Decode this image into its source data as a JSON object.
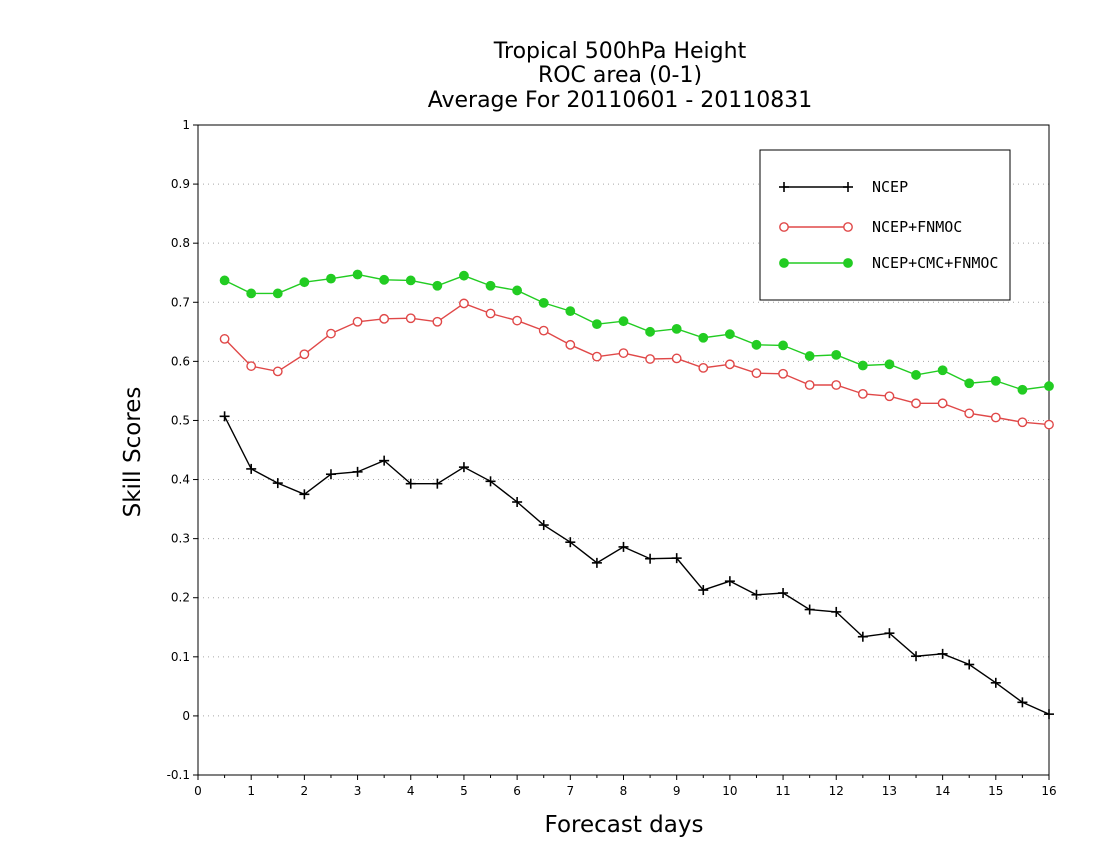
{
  "chart_data": {
    "type": "line",
    "title_lines": [
      "Tropical 500hPa Height",
      "ROC area (0-1)",
      "Average For 20110601 - 20110831"
    ],
    "xlabel": "Forecast days",
    "ylabel": "Skill Scores",
    "xlim": [
      0,
      16
    ],
    "ylim": [
      -0.1,
      1
    ],
    "x_ticks": [
      0,
      1,
      2,
      3,
      4,
      5,
      6,
      7,
      8,
      9,
      10,
      11,
      12,
      13,
      14,
      15,
      16
    ],
    "x_tick_labels": [
      "0",
      "1",
      "2",
      "3",
      "4",
      "5",
      "6",
      "7",
      "8",
      "9",
      "10",
      "11",
      "12",
      "13",
      "14",
      "15",
      "16"
    ],
    "y_ticks": [
      -0.1,
      0,
      0.1,
      0.2,
      0.3,
      0.4,
      0.5,
      0.6,
      0.7,
      0.8,
      0.9,
      1
    ],
    "y_tick_labels": [
      "-0.1",
      "0",
      "0.1",
      "0.2",
      "0.3",
      "0.4",
      "0.5",
      "0.6",
      "0.7",
      "0.8",
      "0.9",
      "1"
    ],
    "grid": "horizontal-dotted",
    "legend_position": "top-right",
    "x": [
      0.5,
      1,
      1.5,
      2,
      2.5,
      3,
      3.5,
      4,
      4.5,
      5,
      5.5,
      6,
      6.5,
      7,
      7.5,
      8,
      8.5,
      9,
      9.5,
      10,
      10.5,
      11,
      11.5,
      12,
      12.5,
      13,
      13.5,
      14,
      14.5,
      15,
      15.5,
      16
    ],
    "series": [
      {
        "name": "NCEP",
        "color": "#000000",
        "marker": "plus",
        "values": [
          0.507,
          0.418,
          0.394,
          0.375,
          0.409,
          0.413,
          0.432,
          0.393,
          0.393,
          0.421,
          0.397,
          0.362,
          0.323,
          0.294,
          0.259,
          0.286,
          0.266,
          0.267,
          0.213,
          0.228,
          0.205,
          0.208,
          0.18,
          0.176,
          0.134,
          0.14,
          0.101,
          0.105,
          0.087,
          0.056,
          0.023,
          0.003
        ]
      },
      {
        "name": "NCEP+FNMOC",
        "color": "#e04848",
        "marker": "open-circle",
        "values": [
          0.638,
          0.592,
          0.583,
          0.612,
          0.647,
          0.667,
          0.672,
          0.673,
          0.667,
          0.698,
          0.681,
          0.669,
          0.652,
          0.628,
          0.608,
          0.614,
          0.604,
          0.605,
          0.589,
          0.595,
          0.58,
          0.579,
          0.56,
          0.56,
          0.545,
          0.541,
          0.529,
          0.529,
          0.512,
          0.505,
          0.497,
          0.493
        ]
      },
      {
        "name": "NCEP+CMC+FNMOC",
        "color": "#22cc22",
        "marker": "filled-circle",
        "values": [
          0.737,
          0.715,
          0.715,
          0.734,
          0.74,
          0.747,
          0.738,
          0.737,
          0.728,
          0.745,
          0.728,
          0.72,
          0.699,
          0.685,
          0.663,
          0.668,
          0.65,
          0.655,
          0.64,
          0.646,
          0.628,
          0.627,
          0.609,
          0.611,
          0.593,
          0.595,
          0.577,
          0.585,
          0.563,
          0.567,
          0.552,
          0.558
        ]
      }
    ]
  }
}
